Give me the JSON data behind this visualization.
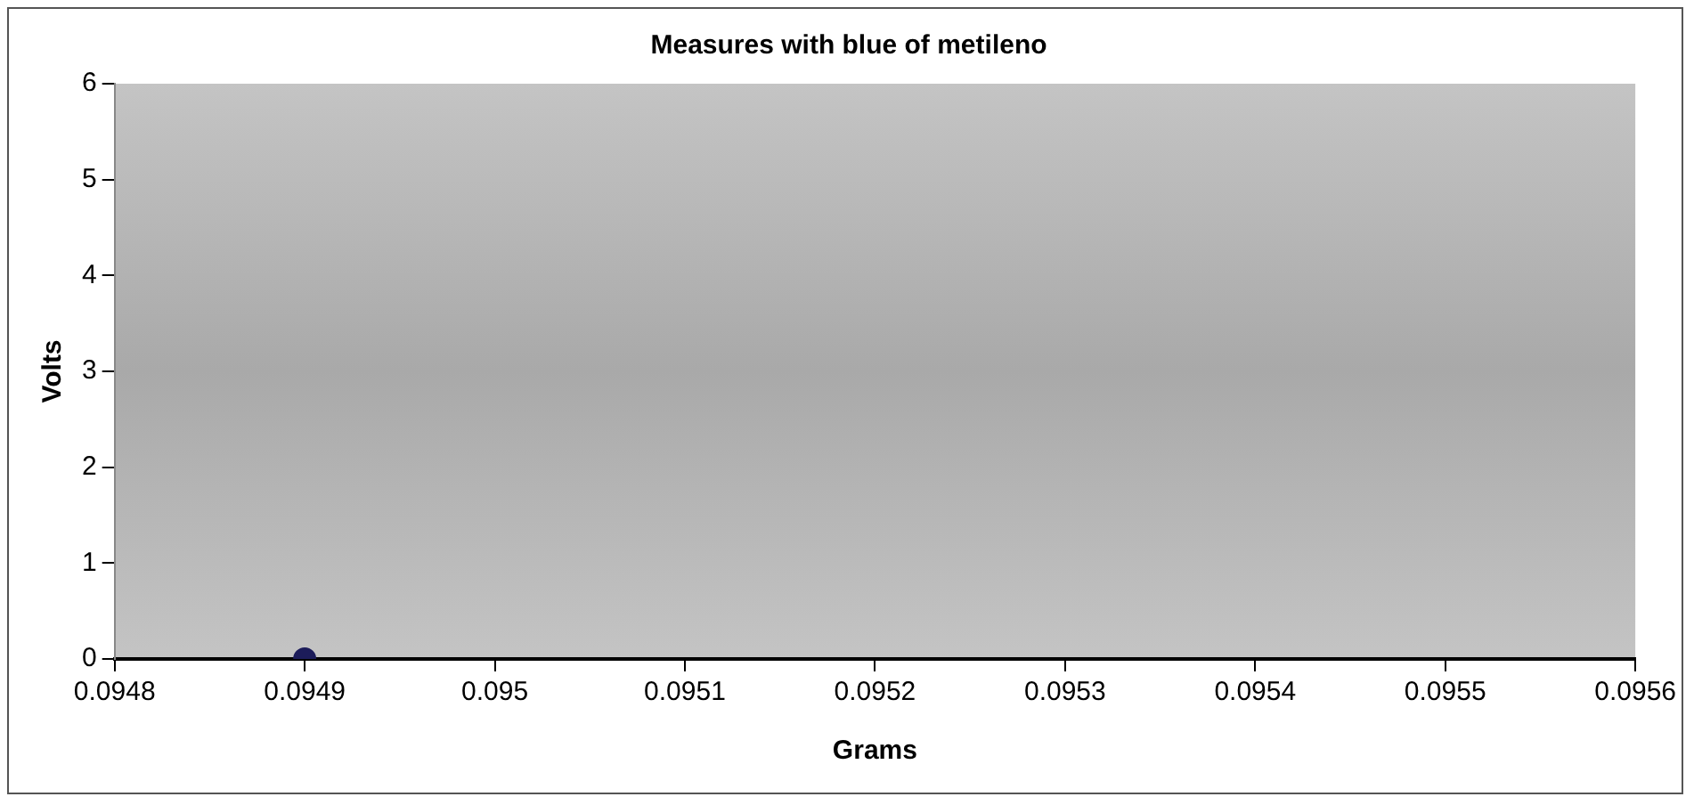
{
  "chart_data": {
    "type": "scatter",
    "title": "Measures with blue of metileno",
    "xlabel": "Grams",
    "ylabel": "Volts",
    "x": [
      0.0949
    ],
    "series": [
      {
        "color": "#1c1c5a",
        "values": [
          0
        ]
      }
    ],
    "xlim": [
      0.0948,
      0.0956
    ],
    "xticks": [
      0.0948,
      0.0949,
      0.095,
      0.0951,
      0.0952,
      0.0953,
      0.0954,
      0.0955,
      0.0956
    ],
    "ylim": [
      0,
      6
    ],
    "yticks": [
      0,
      1,
      2,
      3,
      4,
      5,
      6
    ],
    "grid": false,
    "legend": false,
    "marker": "circle"
  }
}
